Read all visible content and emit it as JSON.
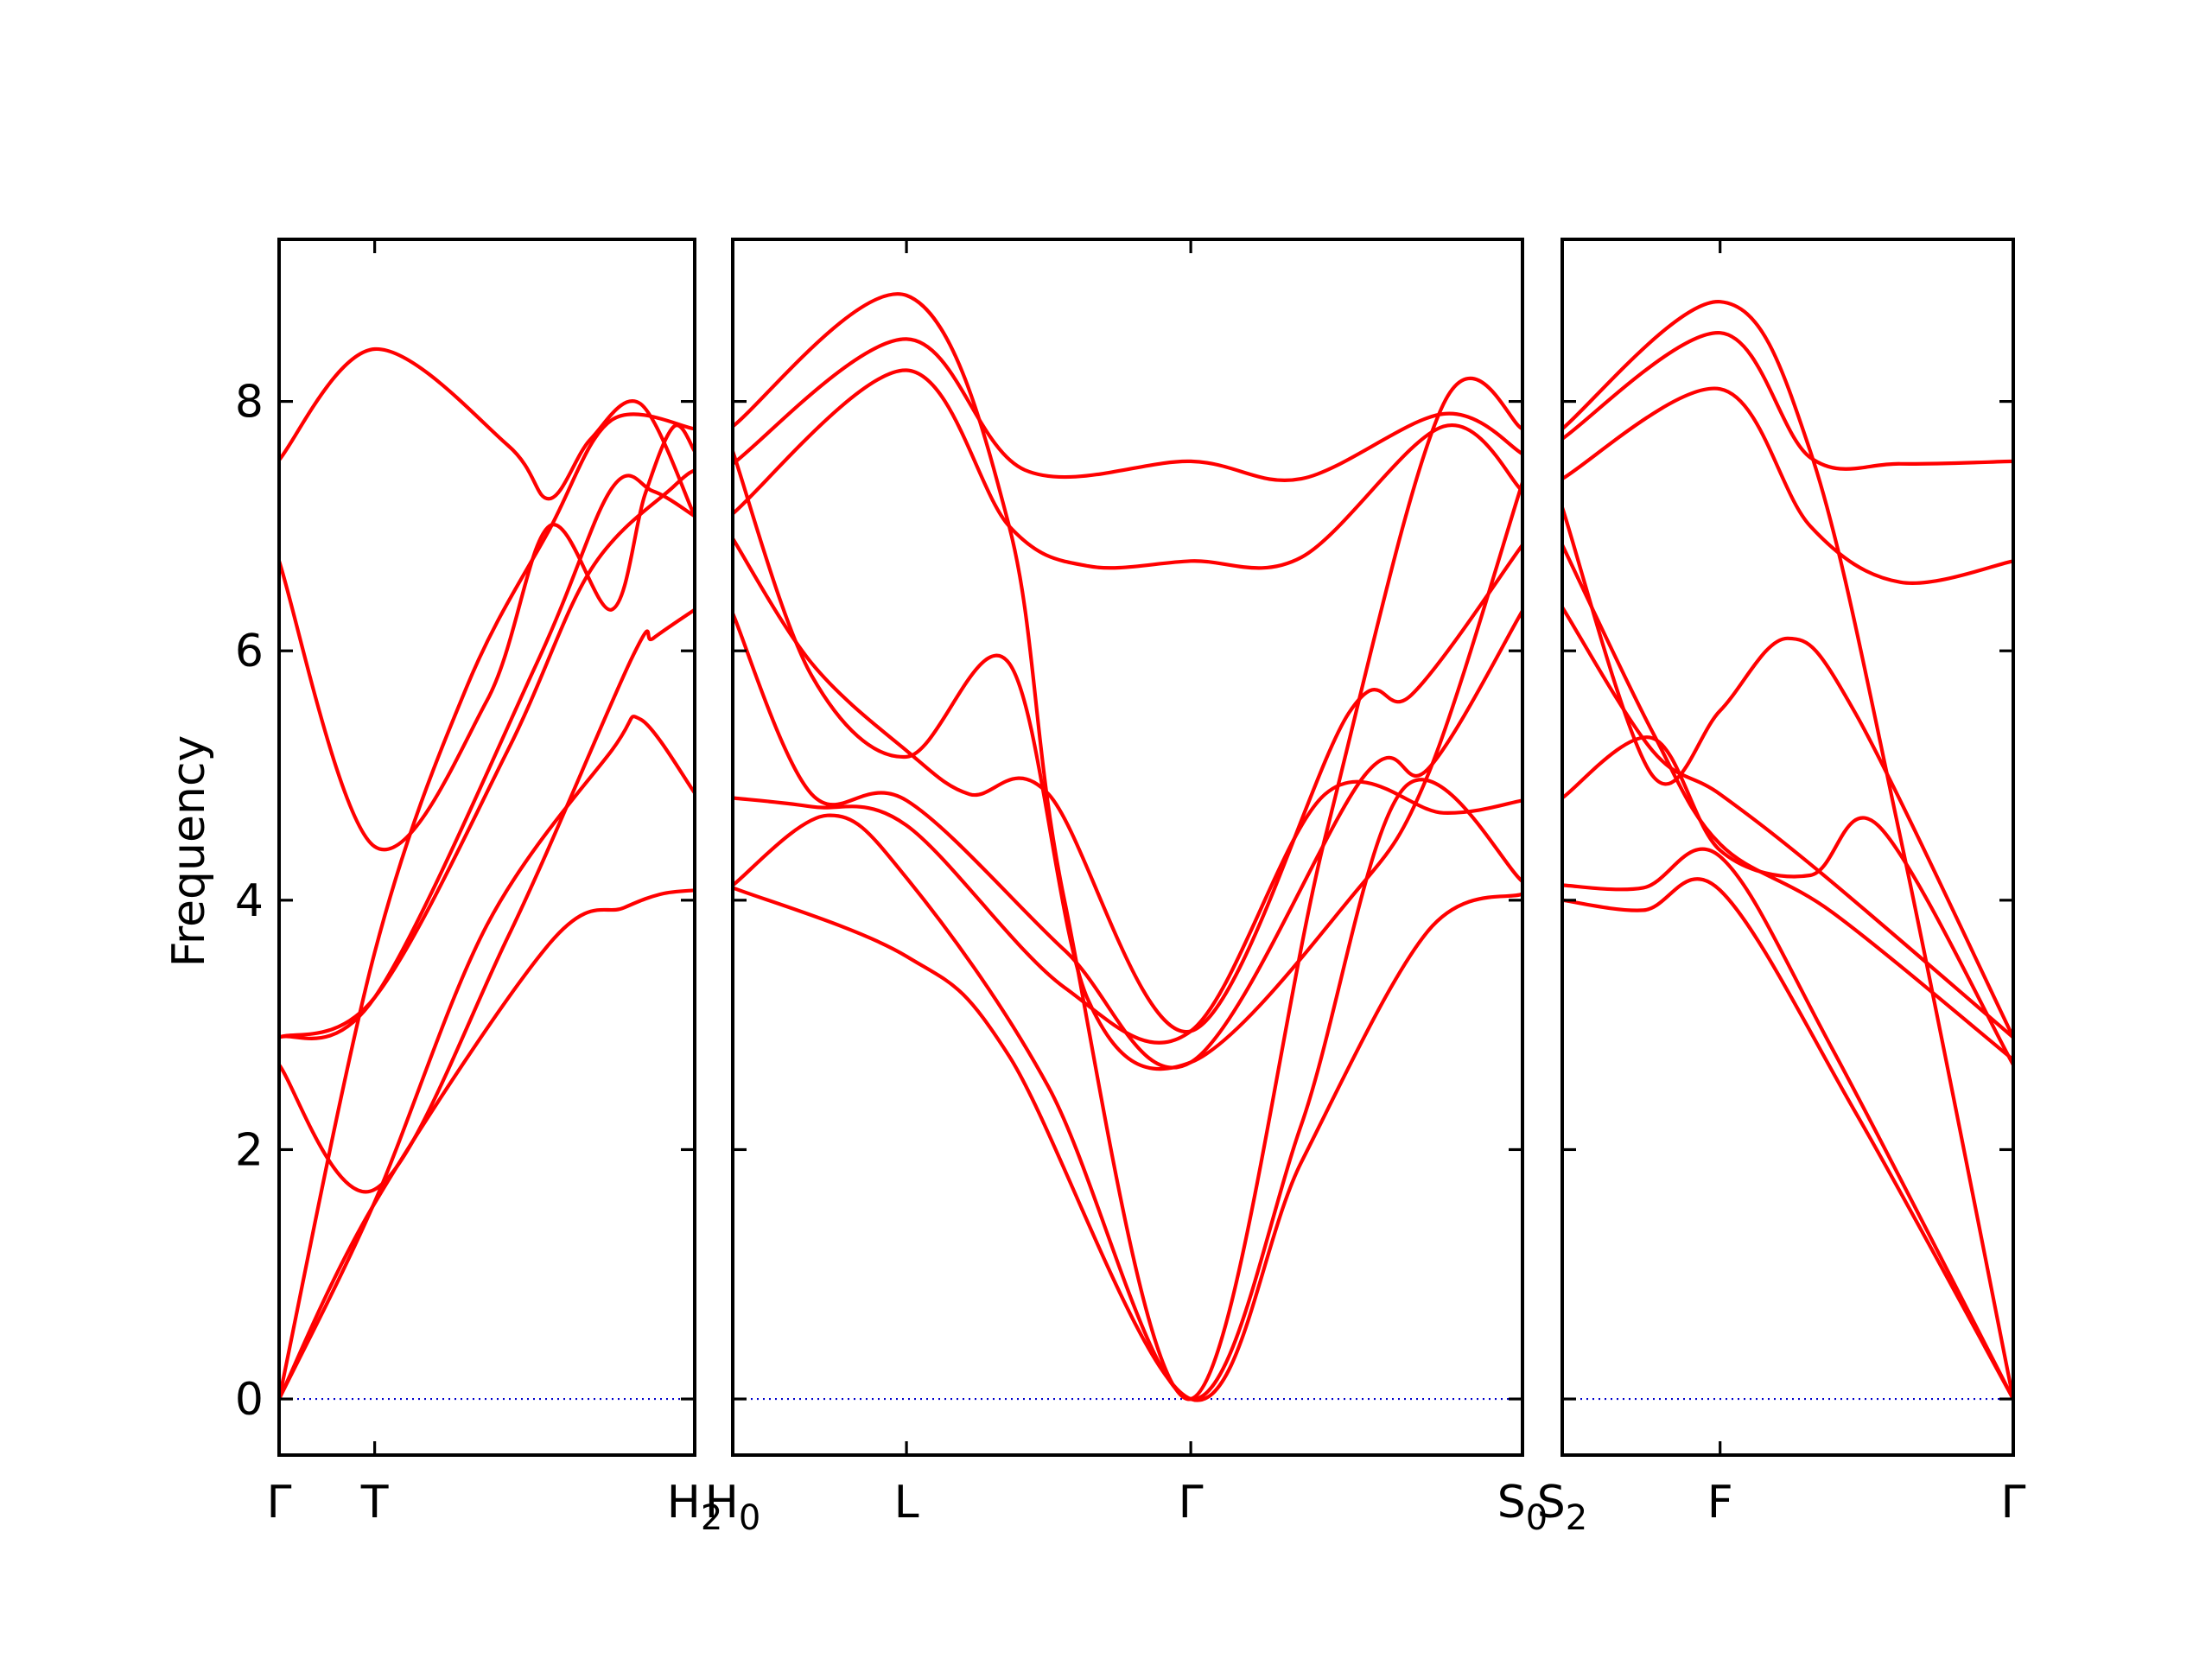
{
  "chart_data": {
    "type": "line",
    "title": "",
    "xlabel": "",
    "ylabel": "Frequency",
    "ylim": [
      -0.45,
      9.3
    ],
    "yticks": [
      0,
      2,
      4,
      6,
      8
    ],
    "grid": false,
    "colors": {
      "bands": "#ff0000",
      "zero_line": "#0000cc",
      "frame": "#000000"
    },
    "panels": [
      {
        "id": "panel-1",
        "xlim": [
          0,
          1
        ],
        "xticks": [
          {
            "pos": 0.0,
            "label": "Γ"
          },
          {
            "pos": 0.23,
            "label": "T"
          },
          {
            "pos": 1.0,
            "label": "H",
            "sub": "2"
          }
        ],
        "series": [
          {
            "x": [
              0,
              0.23,
              0.65,
              0.83,
              0.92,
              1.0
            ],
            "y": [
              0,
              1.57,
              3.65,
              3.94,
              4.05,
              4.08
            ]
          },
          {
            "x": [
              0,
              0.23,
              0.5,
              0.8,
              0.87,
              1.0
            ],
            "y": [
              0,
              1.58,
              3.8,
              5.2,
              5.45,
              4.86
            ]
          },
          {
            "x": [
              0,
              0.23,
              0.55,
              0.85,
              0.9,
              1.0
            ],
            "y": [
              2.68,
              1.68,
              3.7,
              5.95,
              6.1,
              6.33
            ]
          },
          {
            "x": [
              0,
              0.23,
              0.55,
              0.75,
              0.95,
              1.0
            ],
            "y": [
              2.9,
              3.22,
              5.2,
              6.65,
              7.32,
              7.45
            ]
          },
          {
            "x": [
              0,
              0.23,
              0.45,
              0.65,
              0.8,
              1.0
            ],
            "y": [
              0,
              3.58,
              5.7,
              6.97,
              7.85,
              7.78
            ]
          },
          {
            "x": [
              0,
              0.23,
              0.5,
              0.65,
              0.8,
              0.88,
              0.95,
              1.0
            ],
            "y": [
              6.72,
              4.43,
              5.6,
              7.0,
              6.33,
              7.25,
              7.8,
              7.6
            ]
          },
          {
            "x": [
              0,
              0.23,
              0.55,
              0.65,
              0.75,
              0.87,
              1.0
            ],
            "y": [
              7.53,
              8.42,
              7.65,
              7.22,
              7.7,
              7.98,
              7.08
            ]
          },
          {
            "x": [
              0,
              0.23,
              0.62,
              0.8,
              0.9,
              1.0
            ],
            "y": [
              2.9,
              3.22,
              5.9,
              7.3,
              7.28,
              7.08
            ]
          }
        ]
      },
      {
        "id": "panel-2",
        "xlim": [
          0,
          1
        ],
        "xticks": [
          {
            "pos": 0.0,
            "label": "H",
            "sub": "0"
          },
          {
            "pos": 0.22,
            "label": "L"
          },
          {
            "pos": 0.58,
            "label": "Γ"
          },
          {
            "pos": 1.0,
            "label": "S",
            "sub": "0"
          }
        ],
        "series": [
          {
            "x": [
              0,
              0.22,
              0.35,
              0.58,
              0.72,
              0.88,
              1.0
            ],
            "y": [
              4.1,
              3.55,
              2.75,
              0,
              1.9,
              3.75,
              4.05
            ]
          },
          {
            "x": [
              0,
              0.12,
              0.22,
              0.4,
              0.58,
              0.72,
              0.85,
              1.0
            ],
            "y": [
              4.12,
              4.68,
              4.18,
              2.5,
              0,
              2.2,
              4.9,
              4.15
            ]
          },
          {
            "x": [
              0,
              0.1,
              0.22,
              0.42,
              0.58,
              0.75,
              0.9,
              1.0
            ],
            "y": [
              4.82,
              4.75,
              4.6,
              3.3,
              2.95,
              4.85,
              4.7,
              4.8
            ]
          },
          {
            "x": [
              0,
              0.1,
              0.22,
              0.42,
              0.58,
              0.8,
              0.88,
              1.0
            ],
            "y": [
              6.3,
              4.85,
              4.8,
              3.6,
              2.7,
              5.0,
              5.05,
              6.32
            ]
          },
          {
            "x": [
              0,
              0.1,
              0.22,
              0.3,
              0.4,
              0.58,
              0.78,
              0.86,
              1.0
            ],
            "y": [
              6.9,
              5.9,
              5.2,
              4.85,
              4.85,
              2.95,
              5.5,
              5.65,
              6.85
            ]
          },
          {
            "x": [
              0,
              0.1,
              0.22,
              0.35,
              0.45,
              0.58,
              0.78,
              0.88,
              1.0
            ],
            "y": [
              7.6,
              5.8,
              5.15,
              5.9,
              3.2,
              2.7,
              4.0,
              5.0,
              7.35
            ]
          },
          {
            "x": [
              0,
              0.22,
              0.35,
              0.45,
              0.58,
              0.72,
              0.9,
              1.0
            ],
            "y": [
              7.1,
              8.25,
              7.0,
              6.68,
              6.72,
              6.75,
              7.8,
              7.28
            ]
          },
          {
            "x": [
              0,
              0.22,
              0.37,
              0.58,
              0.72,
              0.9,
              1.0
            ],
            "y": [
              7.5,
              8.5,
              7.45,
              7.52,
              7.38,
              7.9,
              7.58
            ]
          },
          {
            "x": [
              0,
              0.22,
              0.35,
              0.42,
              0.58,
              0.75,
              0.9,
              1.0
            ],
            "y": [
              7.8,
              8.85,
              7.0,
              4.0,
              0,
              4.5,
              7.98,
              7.78
            ]
          }
        ]
      },
      {
        "id": "panel-3",
        "xlim": [
          0,
          1
        ],
        "xticks": [
          {
            "pos": 0.0,
            "label": "S",
            "sub": "2"
          },
          {
            "pos": 0.35,
            "label": "F"
          },
          {
            "pos": 1.0,
            "label": "Γ"
          }
        ],
        "series": [
          {
            "x": [
              0,
              0.18,
              0.35,
              0.65,
              1.0
            ],
            "y": [
              4.0,
              3.92,
              4.08,
              2.3,
              0
            ]
          },
          {
            "x": [
              0,
              0.18,
              0.35,
              0.6,
              1.0
            ],
            "y": [
              4.12,
              4.1,
              4.35,
              2.8,
              0
            ]
          },
          {
            "x": [
              0,
              0.2,
              0.35,
              0.55,
              0.7,
              1.0
            ],
            "y": [
              4.82,
              5.3,
              4.4,
              4.2,
              4.6,
              2.68
            ]
          },
          {
            "x": [
              0,
              0.2,
              0.35,
              0.58,
              1.0
            ],
            "y": [
              6.35,
              5.2,
              4.85,
              4.2,
              2.9
            ]
          },
          {
            "x": [
              0,
              0.2,
              0.35,
              0.6,
              1.0
            ],
            "y": [
              6.85,
              5.35,
              4.45,
              3.9,
              2.72
            ]
          },
          {
            "x": [
              0,
              0.2,
              0.35,
              0.5,
              0.65,
              1.0
            ],
            "y": [
              7.15,
              5.0,
              5.52,
              6.1,
              5.5,
              2.9
            ]
          },
          {
            "x": [
              0,
              0.35,
              0.55,
              0.75,
              1.0
            ],
            "y": [
              7.38,
              8.1,
              7.0,
              6.55,
              6.72
            ]
          },
          {
            "x": [
              0,
              0.35,
              0.55,
              0.75,
              1.0
            ],
            "y": [
              7.7,
              8.55,
              7.55,
              7.5,
              7.52
            ]
          },
          {
            "x": [
              0,
              0.35,
              0.55,
              0.75,
              1.0
            ],
            "y": [
              7.78,
              8.8,
              7.6,
              4.5,
              0
            ]
          }
        ]
      }
    ]
  }
}
